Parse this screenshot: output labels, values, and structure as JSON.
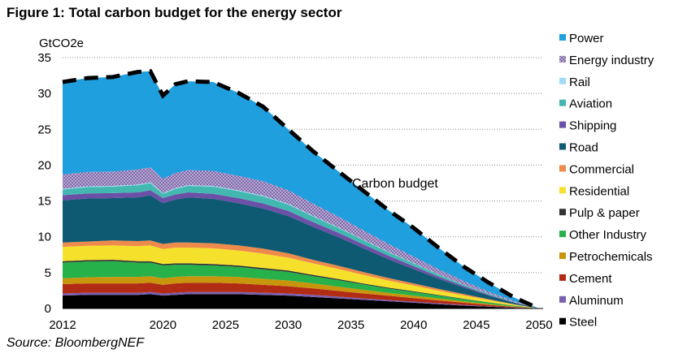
{
  "figure_title": "Figure 1: Total carbon budget for the energy sector",
  "source": "Source: BloombergNEF",
  "chart_data": {
    "type": "area",
    "stacked": true,
    "ylabel": "GtCO2e",
    "ylim": [
      0,
      35
    ],
    "yticks": [
      0,
      5,
      10,
      15,
      20,
      25,
      30,
      35
    ],
    "xlim": [
      2012,
      2050
    ],
    "xticks": [
      2012,
      2020,
      2025,
      2030,
      2035,
      2040,
      2045,
      2050
    ],
    "grid": "horizontal dotted",
    "legend_position": "right",
    "x": [
      2012,
      2014,
      2016,
      2018,
      2019,
      2020,
      2021,
      2022,
      2024,
      2026,
      2028,
      2030,
      2032,
      2034,
      2036,
      2038,
      2040,
      2042,
      2044,
      2046,
      2048,
      2050
    ],
    "series": [
      {
        "name": "Steel",
        "color": "#000000",
        "values": [
          1.8,
          1.9,
          1.9,
          1.9,
          2.0,
          1.8,
          1.9,
          2.0,
          2.0,
          2.0,
          1.9,
          1.8,
          1.6,
          1.4,
          1.2,
          1.0,
          0.8,
          0.6,
          0.4,
          0.25,
          0.1,
          0.0
        ]
      },
      {
        "name": "Aluminum",
        "color": "#7a5fb0",
        "values": [
          0.3,
          0.3,
          0.3,
          0.3,
          0.3,
          0.3,
          0.3,
          0.3,
          0.3,
          0.3,
          0.3,
          0.3,
          0.3,
          0.25,
          0.2,
          0.18,
          0.15,
          0.12,
          0.1,
          0.06,
          0.03,
          0.0
        ]
      },
      {
        "name": "Cement",
        "color": "#b22b14",
        "values": [
          1.3,
          1.3,
          1.3,
          1.3,
          1.3,
          1.2,
          1.3,
          1.3,
          1.3,
          1.2,
          1.1,
          1.0,
          0.9,
          0.8,
          0.7,
          0.6,
          0.5,
          0.4,
          0.3,
          0.2,
          0.1,
          0.0
        ]
      },
      {
        "name": "Petrochemicals",
        "color": "#c8960c",
        "values": [
          0.8,
          0.85,
          0.9,
          0.9,
          0.9,
          0.9,
          0.9,
          0.9,
          0.9,
          0.9,
          0.85,
          0.8,
          0.7,
          0.6,
          0.5,
          0.4,
          0.35,
          0.28,
          0.2,
          0.12,
          0.05,
          0.0
        ]
      },
      {
        "name": "Other Industry",
        "color": "#26b14a",
        "values": [
          2.2,
          2.2,
          2.2,
          2.0,
          1.9,
          1.8,
          1.7,
          1.6,
          1.5,
          1.4,
          1.3,
          1.2,
          1.0,
          0.9,
          0.75,
          0.6,
          0.5,
          0.4,
          0.3,
          0.2,
          0.1,
          0.0
        ]
      },
      {
        "name": "Pulp & paper",
        "color": "#333333",
        "values": [
          0.2,
          0.2,
          0.2,
          0.2,
          0.2,
          0.2,
          0.2,
          0.2,
          0.2,
          0.2,
          0.2,
          0.2,
          0.18,
          0.16,
          0.14,
          0.12,
          0.1,
          0.08,
          0.06,
          0.04,
          0.02,
          0.0
        ]
      },
      {
        "name": "Residential",
        "color": "#f5e12b",
        "values": [
          2.0,
          2.0,
          2.0,
          2.1,
          2.2,
          2.1,
          2.2,
          2.2,
          2.2,
          2.1,
          2.0,
          1.8,
          1.6,
          1.4,
          1.2,
          1.0,
          0.8,
          0.6,
          0.45,
          0.3,
          0.15,
          0.0
        ]
      },
      {
        "name": "Commercial",
        "color": "#ee8a4b",
        "values": [
          0.6,
          0.6,
          0.7,
          0.7,
          0.7,
          0.7,
          0.7,
          0.7,
          0.7,
          0.7,
          0.7,
          0.6,
          0.5,
          0.45,
          0.4,
          0.35,
          0.3,
          0.25,
          0.2,
          0.12,
          0.05,
          0.0
        ]
      },
      {
        "name": "Road",
        "color": "#0e5a72",
        "values": [
          5.9,
          6.0,
          5.9,
          6.1,
          6.3,
          5.7,
          6.0,
          6.3,
          6.2,
          5.9,
          5.6,
          5.2,
          4.6,
          4.0,
          3.3,
          2.6,
          2.0,
          1.4,
          0.9,
          0.5,
          0.2,
          0.0
        ]
      },
      {
        "name": "Shipping",
        "color": "#6c4fa6",
        "values": [
          0.7,
          0.7,
          0.7,
          0.7,
          0.7,
          0.7,
          0.7,
          0.7,
          0.7,
          0.7,
          0.7,
          0.7,
          0.65,
          0.6,
          0.55,
          0.5,
          0.4,
          0.3,
          0.2,
          0.12,
          0.05,
          0.0
        ]
      },
      {
        "name": "Aviation",
        "color": "#43b8b0",
        "values": [
          0.8,
          0.9,
          0.9,
          1.0,
          1.0,
          0.6,
          0.8,
          0.9,
          1.0,
          1.0,
          1.0,
          0.9,
          0.8,
          0.7,
          0.6,
          0.5,
          0.4,
          0.3,
          0.2,
          0.12,
          0.05,
          0.0
        ]
      },
      {
        "name": "Rail",
        "color": "#9fdcf5",
        "values": [
          0.1,
          0.1,
          0.1,
          0.1,
          0.1,
          0.1,
          0.1,
          0.1,
          0.1,
          0.1,
          0.1,
          0.1,
          0.08,
          0.07,
          0.06,
          0.05,
          0.04,
          0.03,
          0.02,
          0.01,
          0.0,
          0.0
        ]
      },
      {
        "name": "Energy industry",
        "color": "#b9a6dc",
        "values": [
          2.0,
          2.0,
          2.0,
          2.1,
          2.1,
          2.0,
          2.1,
          2.1,
          2.1,
          2.0,
          2.0,
          1.9,
          1.7,
          1.5,
          1.3,
          1.1,
          0.9,
          0.7,
          0.5,
          0.3,
          0.15,
          0.0
        ]
      },
      {
        "name": "Power",
        "color": "#1f9fde",
        "values": [
          12.9,
          13.1,
          13.2,
          13.6,
          13.4,
          11.6,
          12.4,
          12.4,
          12.4,
          11.6,
          10.4,
          8.5,
          7.3,
          6.3,
          5.5,
          4.7,
          4.0,
          3.0,
          2.0,
          1.25,
          0.5,
          0.0
        ]
      }
    ],
    "annotation": {
      "label": "Carbon budget",
      "total_line": "dashed black"
    }
  }
}
